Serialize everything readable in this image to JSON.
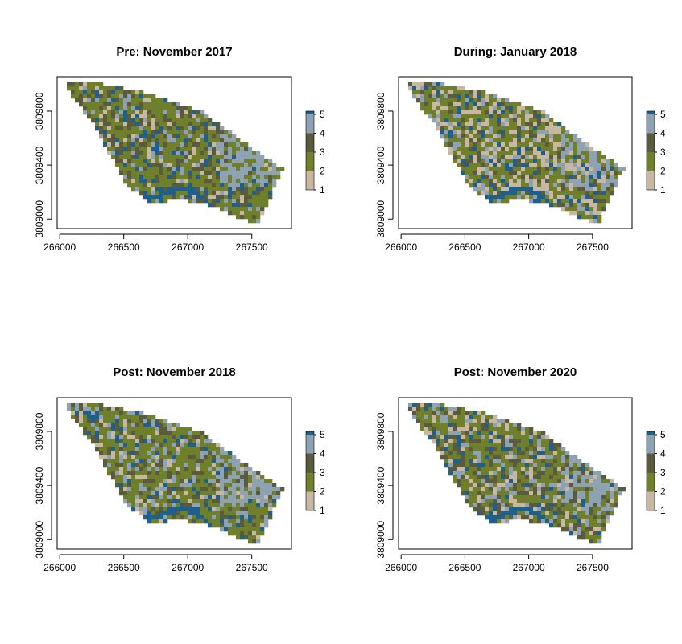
{
  "chart_data": [
    {
      "type": "heatmap",
      "title": "Pre: November 2017",
      "x_ticks": [
        "266000",
        "266500",
        "267000",
        "267500"
      ],
      "y_ticks": [
        "3809000",
        "3809400",
        "3809800"
      ],
      "xlim": [
        265980,
        267810
      ],
      "ylim": [
        3808930,
        3810050
      ],
      "legend_levels": [
        "1",
        "2",
        "3",
        "4",
        "5"
      ],
      "legend_placement": "right",
      "class_shares": {
        "1": 0.08,
        "2": 0.52,
        "3": 0.22,
        "4": 0.1,
        "5": 0.08
      }
    },
    {
      "type": "heatmap",
      "title": "During: January 2018",
      "x_ticks": [
        "266000",
        "266500",
        "267000",
        "267500"
      ],
      "y_ticks": [
        "3809000",
        "3809400",
        "3809800"
      ],
      "xlim": [
        265980,
        267810
      ],
      "ylim": [
        3808930,
        3810050
      ],
      "legend_levels": [
        "1",
        "2",
        "3",
        "4",
        "5"
      ],
      "legend_placement": "right",
      "class_shares": {
        "1": 0.26,
        "2": 0.42,
        "3": 0.12,
        "4": 0.12,
        "5": 0.08
      }
    },
    {
      "type": "heatmap",
      "title": "Post: November 2018",
      "x_ticks": [
        "266000",
        "266500",
        "267000",
        "267500"
      ],
      "y_ticks": [
        "3809000",
        "3809400",
        "3809800"
      ],
      "xlim": [
        265980,
        267810
      ],
      "ylim": [
        3808930,
        3810050
      ],
      "legend_levels": [
        "1",
        "2",
        "3",
        "4",
        "5"
      ],
      "legend_placement": "right",
      "class_shares": {
        "1": 0.1,
        "2": 0.47,
        "3": 0.18,
        "4": 0.17,
        "5": 0.08
      }
    },
    {
      "type": "heatmap",
      "title": "Post: November 2020",
      "x_ticks": [
        "266000",
        "266500",
        "267000",
        "267500"
      ],
      "y_ticks": [
        "3809000",
        "3809400",
        "3809800"
      ],
      "xlim": [
        265980,
        267810
      ],
      "ylim": [
        3808930,
        3810050
      ],
      "legend_levels": [
        "1",
        "2",
        "3",
        "4",
        "5"
      ],
      "legend_placement": "right",
      "class_shares": {
        "1": 0.15,
        "2": 0.42,
        "3": 0.22,
        "4": 0.14,
        "5": 0.07
      }
    }
  ],
  "colors": {
    "1": "#c8b8a2",
    "2": "#6f7f2b",
    "3": "#5a5a3e",
    "4": "#8fa2b4",
    "5": "#1f5f8b"
  }
}
